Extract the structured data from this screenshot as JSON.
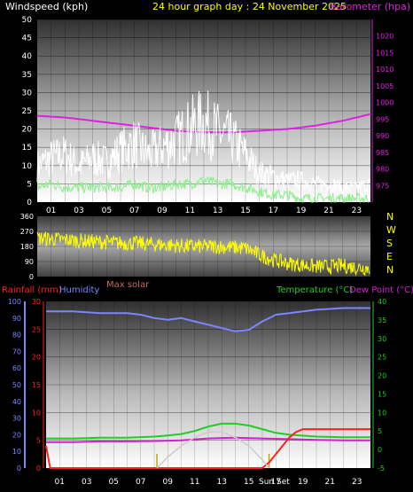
{
  "colors": {
    "background": "#000000",
    "windspeed": "#ffffff",
    "wind_gust": "#ffffff",
    "wind_avg": "#90ee90",
    "barometer": "#e020e0",
    "title": "#ffff00",
    "direction": "#ffff00",
    "rainfall": "#ff2020",
    "humidity": "#7a86ff",
    "temperature": "#22cc22",
    "dewpoint": "#d020d0",
    "solar": "#cccccc",
    "maxsolar": "#cc6666",
    "sun_marker": "#c8a000"
  },
  "chart_data": [
    {
      "type": "line",
      "title": "24 hour graph day : 24 November 2025",
      "ylabel": "Windspeed (kph)",
      "y2label": "Barometer (hpa)",
      "ylim": [
        0,
        50
      ],
      "yticks": [
        "0",
        "5",
        "10",
        "15",
        "20",
        "25",
        "30",
        "35",
        "40",
        "45",
        "50"
      ],
      "y2lim": [
        970,
        1025
      ],
      "y2ticks": [
        "975",
        "980",
        "985",
        "990",
        "995",
        "1000",
        "1005",
        "1010",
        "1015",
        "1020"
      ],
      "xlim": [
        0,
        24
      ],
      "xticks": [
        "01",
        "03",
        "05",
        "07",
        "09",
        "11",
        "13",
        "15",
        "17",
        "19",
        "21",
        "23"
      ],
      "grid": true,
      "series": [
        {
          "role": "barometer",
          "x": [
            0,
            2,
            4,
            6,
            8,
            10,
            12,
            14,
            16,
            18,
            20,
            22,
            24
          ],
          "values": [
            996,
            995.5,
            994.5,
            993.5,
            992.5,
            991.5,
            991,
            991,
            991.5,
            992,
            993,
            994.5,
            996.5
          ]
        },
        {
          "role": "gust",
          "x": [
            0,
            1,
            2,
            3,
            4,
            5,
            6,
            7,
            8,
            9,
            10,
            11,
            12,
            13,
            14,
            15,
            16,
            17,
            18,
            19,
            20,
            21,
            22,
            23,
            24
          ],
          "values": [
            10,
            12,
            13,
            10,
            12,
            11,
            14,
            16,
            13,
            15,
            17,
            20,
            22,
            19,
            17,
            13,
            8,
            7,
            6,
            6,
            5,
            5,
            4,
            4,
            5
          ]
        },
        {
          "role": "average",
          "x": [
            0,
            1,
            2,
            3,
            4,
            5,
            6,
            7,
            8,
            9,
            10,
            11,
            12,
            13,
            14,
            15,
            16,
            17,
            18,
            19,
            20,
            21,
            22,
            23,
            24
          ],
          "values": [
            4,
            5,
            4,
            4,
            4,
            4,
            4,
            5,
            4,
            4,
            5,
            5,
            6,
            5,
            5,
            4,
            3,
            2,
            2,
            1,
            1,
            1,
            1,
            1,
            1
          ]
        }
      ]
    },
    {
      "type": "scatter",
      "ylim": [
        0,
        360
      ],
      "yticks": [
        "0",
        "90",
        "180",
        "270",
        "360"
      ],
      "compass": [
        "N",
        "W",
        "S",
        "E",
        "N"
      ],
      "xlim": [
        0,
        24
      ],
      "series": [
        {
          "role": "direction",
          "x": [
            0,
            1,
            2,
            3,
            4,
            5,
            6,
            7,
            8,
            9,
            10,
            11,
            12,
            13,
            14,
            15,
            16,
            17,
            18,
            19,
            20,
            21,
            22,
            23,
            24
          ],
          "values": [
            230,
            225,
            220,
            215,
            210,
            205,
            200,
            200,
            195,
            190,
            185,
            180,
            180,
            180,
            175,
            170,
            130,
            100,
            80,
            70,
            60,
            60,
            65,
            55,
            50
          ]
        }
      ]
    },
    {
      "type": "line",
      "ylabel": "Rainfall (mm)",
      "ylabel2": "Humidity",
      "y2label": "Temperature (°C)",
      "y2label2": "Dew Point (°C)",
      "extra_label": "Max solar",
      "ylim": [
        0,
        30
      ],
      "yticks": [
        "0",
        "5",
        "10",
        "15",
        "20",
        "25",
        "30"
      ],
      "hum_ticks": [
        "0",
        "10",
        "20",
        "30",
        "40",
        "50",
        "60",
        "70",
        "80",
        "90",
        "100"
      ],
      "y2lim": [
        -5,
        40
      ],
      "y2ticks": [
        "-5",
        "0",
        "5",
        "10",
        "15",
        "20",
        "25",
        "30",
        "35",
        "40"
      ],
      "xlim": [
        0,
        24
      ],
      "xticks": [
        "01",
        "03",
        "05",
        "07",
        "09",
        "11",
        "13",
        "15",
        "17",
        "19",
        "21",
        "23"
      ],
      "sun_label": "Sun Set",
      "sunrise_x": 8.2,
      "sunset_x": 16.5,
      "series": [
        {
          "role": "humidity",
          "x": [
            0,
            2,
            4,
            6,
            7,
            8,
            9,
            10,
            11,
            12,
            13,
            14,
            15,
            16,
            17,
            18,
            19,
            20,
            22,
            24
          ],
          "values": [
            94,
            94,
            93,
            93,
            92,
            90,
            89,
            90,
            88,
            86,
            84,
            82,
            83,
            88,
            92,
            93,
            94,
            95,
            96,
            96
          ]
        },
        {
          "role": "temperature",
          "x": [
            0,
            2,
            4,
            6,
            8,
            9,
            10,
            11,
            12,
            13,
            14,
            15,
            16,
            17,
            18,
            20,
            22,
            24
          ],
          "values": [
            3,
            3,
            3.2,
            3.2,
            3.5,
            3.8,
            4.2,
            5,
            6.2,
            7,
            7,
            6.5,
            5.5,
            4.5,
            4,
            3.5,
            3.3,
            3.3
          ]
        },
        {
          "role": "dewpoint",
          "x": [
            0,
            2,
            4,
            6,
            8,
            10,
            12,
            14,
            16,
            18,
            20,
            22,
            24
          ],
          "values": [
            2,
            2,
            2.2,
            2.2,
            2.3,
            2.5,
            3,
            3.2,
            3,
            2.8,
            2.6,
            2.5,
            2.5
          ]
        },
        {
          "role": "rain",
          "x": [
            0,
            0.3,
            16,
            16.5,
            17,
            17.5,
            18,
            18.5,
            19,
            20,
            24
          ],
          "values": [
            4,
            0,
            0,
            1,
            2.5,
            4,
            5.5,
            6.5,
            7,
            7,
            7
          ]
        },
        {
          "role": "solar",
          "x": [
            8.2,
            9,
            10,
            11,
            12,
            13,
            14,
            15,
            16,
            16.5
          ],
          "values": [
            0,
            2,
            4,
            5.5,
            6.5,
            6.5,
            5.5,
            4,
            1.5,
            0
          ]
        }
      ]
    }
  ]
}
